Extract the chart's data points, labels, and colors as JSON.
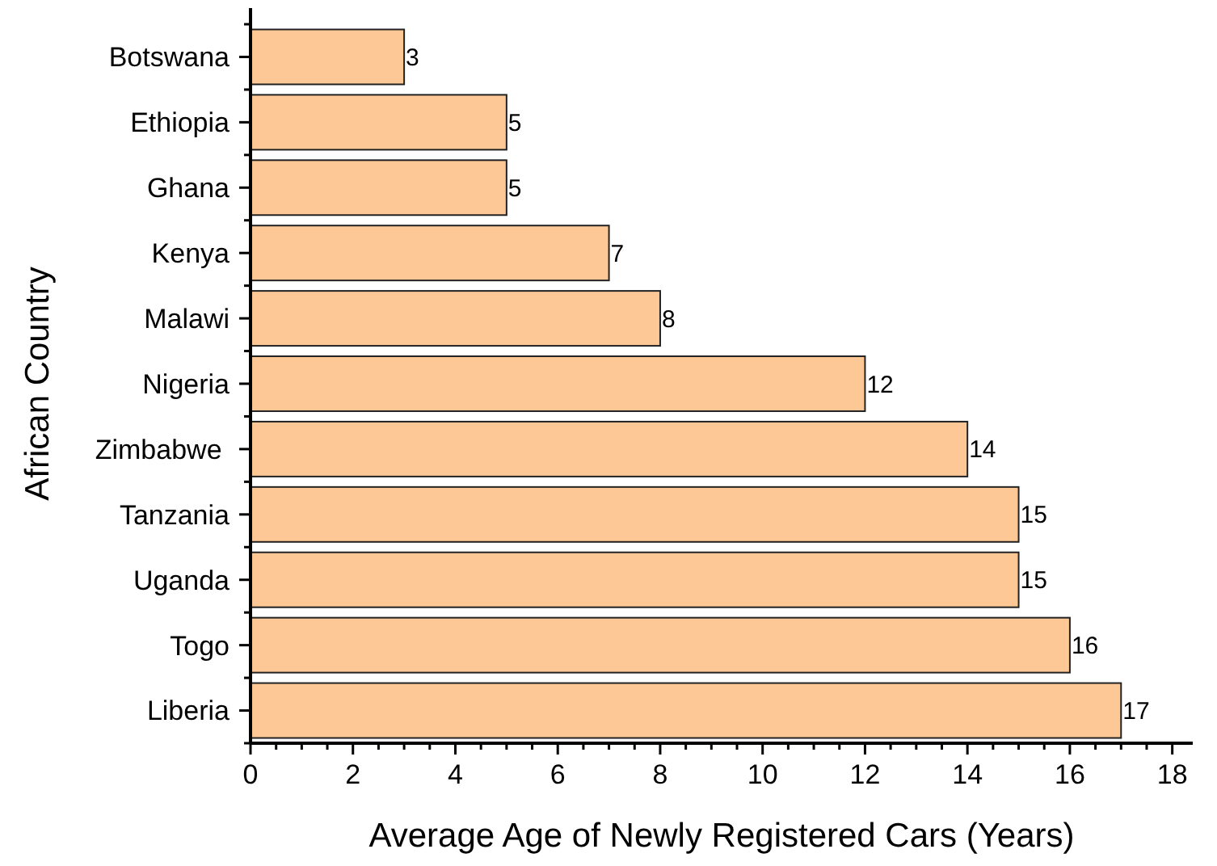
{
  "chart_data": {
    "type": "bar",
    "orientation": "horizontal",
    "xlabel": "Average Age of Newly Registered Cars (Years)",
    "ylabel": "African Country",
    "categories": [
      "Botswana",
      "Ethiopia",
      "Ghana",
      "Kenya",
      "Malawi",
      "Nigeria",
      "Zimbabwe ",
      "Tanzania",
      "Uganda",
      "Togo",
      "Liberia"
    ],
    "values": [
      3,
      5,
      5,
      7,
      8,
      12,
      14,
      15,
      15,
      16,
      17
    ],
    "color": "#fdc896",
    "data_labels": true,
    "xlim": [
      0,
      18.4
    ],
    "xticks": [
      0,
      {
        "value": 0.5,
        "label": null
      },
      {
        "value": 1,
        "label": null
      },
      {
        "value": 1.5,
        "label": null
      },
      2,
      {
        "value": 2.5,
        "label": null
      },
      {
        "value": 3,
        "label": null
      },
      {
        "value": 3.5,
        "label": null
      },
      4,
      {
        "value": 4.5,
        "label": null
      },
      {
        "value": 5,
        "label": null
      },
      {
        "value": 5.5,
        "label": null
      },
      6,
      {
        "value": 6.5,
        "label": null
      },
      {
        "value": 7,
        "label": null
      },
      {
        "value": 7.5,
        "label": null
      },
      8,
      {
        "value": 8.5,
        "label": null
      },
      {
        "value": 9,
        "label": null
      },
      {
        "value": 9.5,
        "label": null
      },
      10,
      {
        "value": 10.5,
        "label": null
      },
      {
        "value": 11,
        "label": null
      },
      {
        "value": 11.5,
        "label": null
      },
      12,
      {
        "value": 12.5,
        "label": null
      },
      {
        "value": 13,
        "label": null
      },
      {
        "value": 13.5,
        "label": null
      },
      14,
      {
        "value": 14.5,
        "label": null
      },
      {
        "value": 15,
        "label": null
      },
      {
        "value": 15.5,
        "label": null
      },
      16,
      {
        "value": 16.5,
        "label": null
      },
      {
        "value": 17,
        "label": null
      },
      {
        "value": 17.5,
        "label": null
      },
      18
    ],
    "grid": false
  }
}
